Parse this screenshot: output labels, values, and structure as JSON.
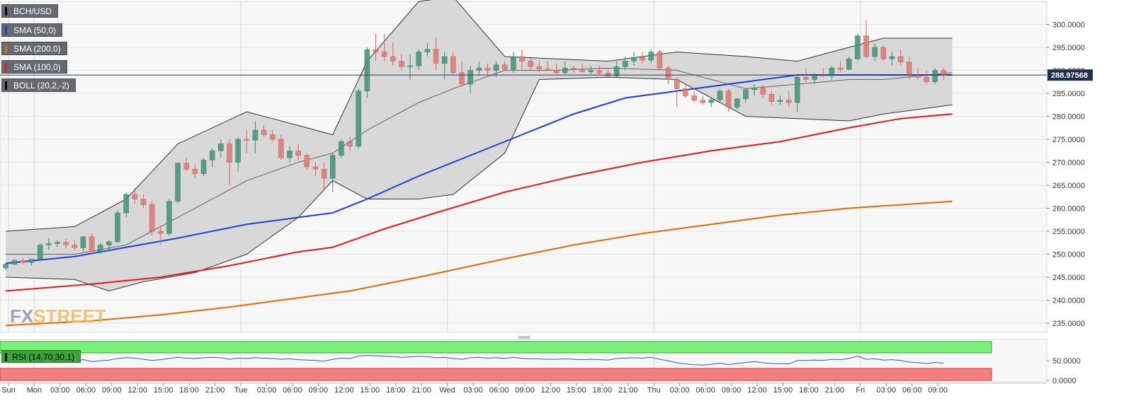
{
  "legend": [
    {
      "label": "BCH/USD",
      "color": "#000000"
    },
    {
      "label": "SMA (50,0)",
      "color": "#1f3fdb"
    },
    {
      "label": "SMA (200,0)",
      "color": "#e26a00"
    },
    {
      "label": "SMA (100,0)",
      "color": "#e31a1c"
    },
    {
      "label": "BOLL (20,2,-2)",
      "color": "#000000"
    }
  ],
  "rsi_label": "RSI (14,70,30,1)",
  "logo": {
    "fx": "FX",
    "street": "STREET"
  },
  "chart_data": {
    "type": "candlestick",
    "symbol": "BCH/USD",
    "current_price": "288.97568",
    "price_axis": {
      "ylim": [
        233,
        305
      ],
      "ticks": [
        "300.0000",
        "295.0000",
        "290.0000",
        "285.0000",
        "280.0000",
        "275.0000",
        "270.0000",
        "265.0000",
        "260.0000",
        "255.0000",
        "250.0000",
        "245.0000",
        "240.0000",
        "235.0000"
      ]
    },
    "rsi_axis": {
      "ticks": [
        "50.0000",
        "0.0000"
      ]
    },
    "x_axis": {
      "ticks": [
        "Sun",
        "Mon",
        "03:00",
        "06:00",
        "09:00",
        "12:00",
        "15:00",
        "18:00",
        "21:00",
        "Tue",
        "03:00",
        "06:00",
        "09:00",
        "12:00",
        "15:00",
        "18:00",
        "21:00",
        "Wed",
        "03:00",
        "06:00",
        "09:00",
        "12:00",
        "15:00",
        "18:00",
        "21:00",
        "Thu",
        "03:00",
        "06:00",
        "09:00",
        "12:00",
        "15:00",
        "18:00",
        "21:00",
        "Fri",
        "03:00",
        "06:00",
        "09:00"
      ],
      "ticks_per_hour": 1
    },
    "candles": [
      [
        247.0,
        248.0,
        246.5,
        247.8
      ],
      [
        247.8,
        249.0,
        247.5,
        248.6
      ],
      [
        248.6,
        249.2,
        247.8,
        248.2
      ],
      [
        248.2,
        249.0,
        247.6,
        248.9
      ],
      [
        248.9,
        252.5,
        248.5,
        252.0
      ],
      [
        252.0,
        253.5,
        251.0,
        252.3
      ],
      [
        252.3,
        253.0,
        251.6,
        252.6
      ],
      [
        252.6,
        253.4,
        251.2,
        252.0
      ],
      [
        252.0,
        253.0,
        250.8,
        251.4
      ],
      [
        251.4,
        254.0,
        250.5,
        253.8
      ],
      [
        253.8,
        254.5,
        249.8,
        250.6
      ],
      [
        250.6,
        252.5,
        250.0,
        252.0
      ],
      [
        252.0,
        253.0,
        251.0,
        252.7
      ],
      [
        252.7,
        259.5,
        252.5,
        259.0
      ],
      [
        259.0,
        263.5,
        258.0,
        263.0
      ],
      [
        263.0,
        264.5,
        261.0,
        262.0
      ],
      [
        262.0,
        263.0,
        260.0,
        260.8
      ],
      [
        260.8,
        261.5,
        254.0,
        255.0
      ],
      [
        255.0,
        256.0,
        252.0,
        254.5
      ],
      [
        254.5,
        262.0,
        254.0,
        261.5
      ],
      [
        261.5,
        270.0,
        261.0,
        269.8
      ],
      [
        269.8,
        271.0,
        268.0,
        268.5
      ],
      [
        268.5,
        269.5,
        266.5,
        267.5
      ],
      [
        267.5,
        271.0,
        267.0,
        270.5
      ],
      [
        270.5,
        273.0,
        269.0,
        272.5
      ],
      [
        272.5,
        275.0,
        271.0,
        274.0
      ],
      [
        274.0,
        275.0,
        265.0,
        270.0
      ],
      [
        270.0,
        275.5,
        268.0,
        275.0
      ],
      [
        275.0,
        277.0,
        272.0,
        274.8
      ],
      [
        274.8,
        279.0,
        272.0,
        277.0
      ],
      [
        277.0,
        278.0,
        275.5,
        276.0
      ],
      [
        276.0,
        277.0,
        274.5,
        275.0
      ],
      [
        275.0,
        276.0,
        270.5,
        271.0
      ],
      [
        271.0,
        273.5,
        270.0,
        272.5
      ],
      [
        272.5,
        274.0,
        270.5,
        271.5
      ],
      [
        271.5,
        272.0,
        268.5,
        269.0
      ],
      [
        269.0,
        270.0,
        267.0,
        268.5
      ],
      [
        268.5,
        270.0,
        264.0,
        266.5
      ],
      [
        266.5,
        272.0,
        263.5,
        271.5
      ],
      [
        271.5,
        275.0,
        271.0,
        274.5
      ],
      [
        274.5,
        275.5,
        272.5,
        273.5
      ],
      [
        273.5,
        286.0,
        273.0,
        285.5
      ],
      [
        285.5,
        295.0,
        284.0,
        294.5
      ],
      [
        294.5,
        298.0,
        292.0,
        294.0
      ],
      [
        294.0,
        298.0,
        292.0,
        293.0
      ],
      [
        293.0,
        296.0,
        291.0,
        292.0
      ],
      [
        292.0,
        293.5,
        290.0,
        290.8
      ],
      [
        290.8,
        293.5,
        288.0,
        291.0
      ],
      [
        291.0,
        294.5,
        290.0,
        294.0
      ],
      [
        294.0,
        296.0,
        293.0,
        294.6
      ],
      [
        294.6,
        297.0,
        290.0,
        291.5
      ],
      [
        291.5,
        294.0,
        288.0,
        293.0
      ],
      [
        293.0,
        294.0,
        289.0,
        289.5
      ],
      [
        289.5,
        292.0,
        286.5,
        287.0
      ],
      [
        287.0,
        291.0,
        285.0,
        290.0
      ],
      [
        290.0,
        292.0,
        289.0,
        290.5
      ],
      [
        290.5,
        291.5,
        289.0,
        290.0
      ],
      [
        290.0,
        292.0,
        288.5,
        291.2
      ],
      [
        291.2,
        292.0,
        290.0,
        290.2
      ],
      [
        290.2,
        294.0,
        289.5,
        293.0
      ],
      [
        293.0,
        294.5,
        290.0,
        292.0
      ],
      [
        292.0,
        293.0,
        290.0,
        290.8
      ],
      [
        290.8,
        292.0,
        289.5,
        290.3
      ],
      [
        290.3,
        292.0,
        289.8,
        290.0
      ],
      [
        290.0,
        291.5,
        289.0,
        289.5
      ],
      [
        289.5,
        292.0,
        289.0,
        290.5
      ],
      [
        290.5,
        291.0,
        289.5,
        290.2
      ],
      [
        290.2,
        291.5,
        289.5,
        289.7
      ],
      [
        289.7,
        291.0,
        289.0,
        290.0
      ],
      [
        290.0,
        291.0,
        289.0,
        289.4
      ],
      [
        289.4,
        290.5,
        288.5,
        288.8
      ],
      [
        288.8,
        292.0,
        288.5,
        290.8
      ],
      [
        290.8,
        293.0,
        290.0,
        292.0
      ],
      [
        292.0,
        294.0,
        291.0,
        292.8
      ],
      [
        292.8,
        294.0,
        291.5,
        292.2
      ],
      [
        292.2,
        294.5,
        291.5,
        294.0
      ],
      [
        294.0,
        294.5,
        290.0,
        290.5
      ],
      [
        290.5,
        291.0,
        287.0,
        288.0
      ],
      [
        288.0,
        288.5,
        282.0,
        286.0
      ],
      [
        286.0,
        287.0,
        284.0,
        284.5
      ],
      [
        284.5,
        285.5,
        283.0,
        283.5
      ],
      [
        283.5,
        284.5,
        282.5,
        283.0
      ],
      [
        283.0,
        284.0,
        282.0,
        283.6
      ],
      [
        283.6,
        286.0,
        283.0,
        285.5
      ],
      [
        285.5,
        286.0,
        281.0,
        282.0
      ],
      [
        282.0,
        284.0,
        281.5,
        283.8
      ],
      [
        283.8,
        286.0,
        283.0,
        285.8
      ],
      [
        285.8,
        287.0,
        284.5,
        286.2
      ],
      [
        286.2,
        286.8,
        284.0,
        284.8
      ],
      [
        284.8,
        285.5,
        282.5,
        283.2
      ],
      [
        283.2,
        284.5,
        282.5,
        283.5
      ],
      [
        283.5,
        285.5,
        282.0,
        283.0
      ],
      [
        283.0,
        289.0,
        281.0,
        288.5
      ],
      [
        288.5,
        290.5,
        287.5,
        288.0
      ],
      [
        288.0,
        289.5,
        287.0,
        289.0
      ],
      [
        289.0,
        290.5,
        288.5,
        288.8
      ],
      [
        288.8,
        291.0,
        288.0,
        290.5
      ],
      [
        290.5,
        292.0,
        289.5,
        290.2
      ],
      [
        290.2,
        293.0,
        290.0,
        292.5
      ],
      [
        292.5,
        298.0,
        292.0,
        297.5
      ],
      [
        297.5,
        301.0,
        292.5,
        293.0
      ],
      [
        293.0,
        296.0,
        292.0,
        295.0
      ],
      [
        295.0,
        295.5,
        292.0,
        292.5
      ],
      [
        292.5,
        294.0,
        291.0,
        293.0
      ],
      [
        293.0,
        294.5,
        291.0,
        291.8
      ],
      [
        291.8,
        293.0,
        288.0,
        289.0
      ],
      [
        289.0,
        290.5,
        288.0,
        288.5
      ],
      [
        288.5,
        290.0,
        287.0,
        287.5
      ],
      [
        287.5,
        290.5,
        287.0,
        290.0
      ],
      [
        290.0,
        290.5,
        288.0,
        288.9
      ]
    ],
    "bollinger": {
      "upper": [
        [
          0,
          255.0
        ],
        [
          8,
          256.0
        ],
        [
          14,
          262.0
        ],
        [
          20,
          274.0
        ],
        [
          28,
          281.0
        ],
        [
          34,
          278.0
        ],
        [
          38,
          276.0
        ],
        [
          42,
          292.0
        ],
        [
          48,
          305.0
        ],
        [
          52,
          306.0
        ],
        [
          58,
          293.0
        ],
        [
          64,
          292.5
        ],
        [
          70,
          292.0
        ],
        [
          78,
          294.0
        ],
        [
          86,
          293.0
        ],
        [
          92,
          292.0
        ],
        [
          98,
          295.0
        ],
        [
          102,
          297.0
        ],
        [
          110,
          297.0
        ]
      ],
      "middle": [
        [
          0,
          250.0
        ],
        [
          8,
          250.0
        ],
        [
          14,
          252.0
        ],
        [
          20,
          258.0
        ],
        [
          28,
          266.0
        ],
        [
          34,
          270.0
        ],
        [
          38,
          272.0
        ],
        [
          42,
          277.0
        ],
        [
          48,
          283.0
        ],
        [
          52,
          286.0
        ],
        [
          58,
          290.0
        ],
        [
          64,
          290.0
        ],
        [
          70,
          290.5
        ],
        [
          78,
          290.0
        ],
        [
          86,
          286.0
        ],
        [
          92,
          287.0
        ],
        [
          98,
          288.0
        ],
        [
          102,
          288.0
        ],
        [
          110,
          289.5
        ]
      ],
      "lower": [
        [
          0,
          245.0
        ],
        [
          8,
          244.5
        ],
        [
          12,
          242.0
        ],
        [
          16,
          244.0
        ],
        [
          22,
          246.0
        ],
        [
          28,
          250.0
        ],
        [
          34,
          258.0
        ],
        [
          38,
          266.0
        ],
        [
          42,
          262.0
        ],
        [
          48,
          262.0
        ],
        [
          52,
          263.0
        ],
        [
          58,
          272.0
        ],
        [
          62,
          288.0
        ],
        [
          70,
          288.5
        ],
        [
          78,
          288.0
        ],
        [
          86,
          280.0
        ],
        [
          92,
          279.5
        ],
        [
          98,
          279.0
        ],
        [
          102,
          280.5
        ],
        [
          110,
          282.5
        ]
      ]
    },
    "sma50": [
      [
        0,
        248.0
      ],
      [
        8,
        249.5
      ],
      [
        14,
        251.5
      ],
      [
        20,
        253.5
      ],
      [
        28,
        256.5
      ],
      [
        34,
        258.0
      ],
      [
        38,
        259.0
      ],
      [
        42,
        262.0
      ],
      [
        48,
        267.0
      ],
      [
        54,
        271.5
      ],
      [
        60,
        276.0
      ],
      [
        66,
        280.5
      ],
      [
        72,
        284.0
      ],
      [
        78,
        285.5
      ],
      [
        86,
        287.5
      ],
      [
        92,
        289.0
      ],
      [
        98,
        289.0
      ],
      [
        110,
        289.0
      ]
    ],
    "sma100": [
      [
        0,
        242.0
      ],
      [
        10,
        243.5
      ],
      [
        18,
        245.0
      ],
      [
        26,
        247.5
      ],
      [
        34,
        250.5
      ],
      [
        38,
        251.5
      ],
      [
        44,
        255.5
      ],
      [
        50,
        259.0
      ],
      [
        58,
        263.5
      ],
      [
        66,
        267.0
      ],
      [
        74,
        270.0
      ],
      [
        82,
        272.5
      ],
      [
        90,
        274.5
      ],
      [
        98,
        277.5
      ],
      [
        104,
        279.5
      ],
      [
        110,
        280.5
      ]
    ],
    "sma200": [
      [
        0,
        234.5
      ],
      [
        10,
        235.5
      ],
      [
        18,
        236.8
      ],
      [
        26,
        238.5
      ],
      [
        34,
        240.5
      ],
      [
        40,
        242.0
      ],
      [
        48,
        245.0
      ],
      [
        58,
        249.0
      ],
      [
        66,
        252.0
      ],
      [
        74,
        254.5
      ],
      [
        82,
        256.5
      ],
      [
        90,
        258.5
      ],
      [
        98,
        260.0
      ],
      [
        110,
        261.5
      ]
    ],
    "rsi": [
      55,
      56,
      54,
      55,
      57,
      58,
      56,
      55,
      54,
      57,
      52,
      54,
      56,
      60,
      62,
      61,
      58,
      55,
      57,
      60,
      63,
      61,
      60,
      62,
      63,
      62,
      58,
      61,
      60,
      62,
      61,
      60,
      58,
      59,
      57,
      56,
      55,
      53,
      58,
      61,
      60,
      66,
      68,
      67,
      66,
      65,
      63,
      64,
      66,
      65,
      62,
      63,
      60,
      58,
      62,
      63,
      61,
      62,
      60,
      63,
      60,
      59,
      59,
      58,
      58,
      59,
      58,
      57,
      58,
      57,
      56,
      60,
      61,
      62,
      61,
      63,
      58,
      54,
      49,
      46,
      44,
      43,
      45,
      48,
      44,
      47,
      50,
      52,
      49,
      47,
      47,
      46,
      55,
      55,
      56,
      55,
      58,
      57,
      60,
      66,
      58,
      59,
      56,
      57,
      55,
      51,
      49,
      47,
      50,
      48
    ]
  }
}
